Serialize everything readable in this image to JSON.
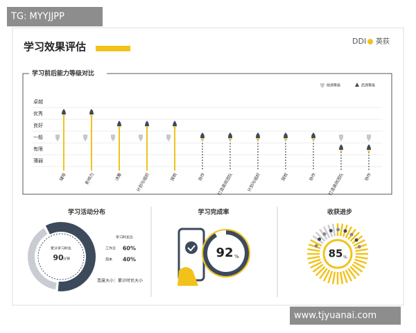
{
  "watermark_top": "TG: MYYJJPP",
  "watermark_bottom": "www.tjyuanai.com",
  "header": {
    "title": "学习效果评估",
    "logo": "DDI",
    "logo_cn": "英荻"
  },
  "chart_data": [
    {
      "type": "level",
      "title": "学习前后能力等级对比",
      "categories": [
        "辅导",
        "影响力",
        "决策",
        "计划与组织",
        "授权",
        "协作",
        "打造高效团队",
        "计划与组织",
        "授权",
        "协作",
        "打造高效团队",
        "协作"
      ],
      "series": [
        {
          "name": "前测等级",
          "color": "#c8c8c8",
          "values": [
            3,
            3,
            3,
            3,
            3,
            3,
            3,
            3,
            3,
            3,
            3,
            3
          ]
        },
        {
          "name": "后测等级",
          "color": "#3c4a5c",
          "values": [
            5,
            5,
            4,
            4,
            4,
            3,
            3,
            3,
            3,
            3,
            2,
            2
          ]
        }
      ],
      "ylim": [
        1,
        6
      ],
      "yticks": [
        {
          "value": 6,
          "label": "卓越"
        },
        {
          "value": 5,
          "label": "优秀"
        },
        {
          "value": 4,
          "label": "良好"
        },
        {
          "value": 3,
          "label": "一般"
        },
        {
          "value": 2,
          "label": "有限"
        },
        {
          "value": 1,
          "label": "薄弱"
        }
      ],
      "grid": true
    },
    {
      "type": "donut",
      "title": "学习活动分布",
      "center_label": "累计学习时长",
      "center_value": "90",
      "center_unit": "分钟",
      "legend_title": "学习时长比",
      "categories": [
        "工作日",
        "周末"
      ],
      "values": [
        60,
        40
      ],
      "value_labels": [
        "60%",
        "40%"
      ],
      "colors": [
        "#3c4a5c",
        "#c9ccd2"
      ],
      "note": "宽度大小：累计时长大小"
    },
    {
      "type": "ring",
      "title": "学习完成率",
      "value": 92,
      "value_label": "92",
      "unit": "%",
      "color": "#3c4a5c"
    },
    {
      "type": "burst",
      "title": "收获进步",
      "value": 85,
      "value_label": "85",
      "unit": "%",
      "color": "#f2c21b"
    }
  ]
}
